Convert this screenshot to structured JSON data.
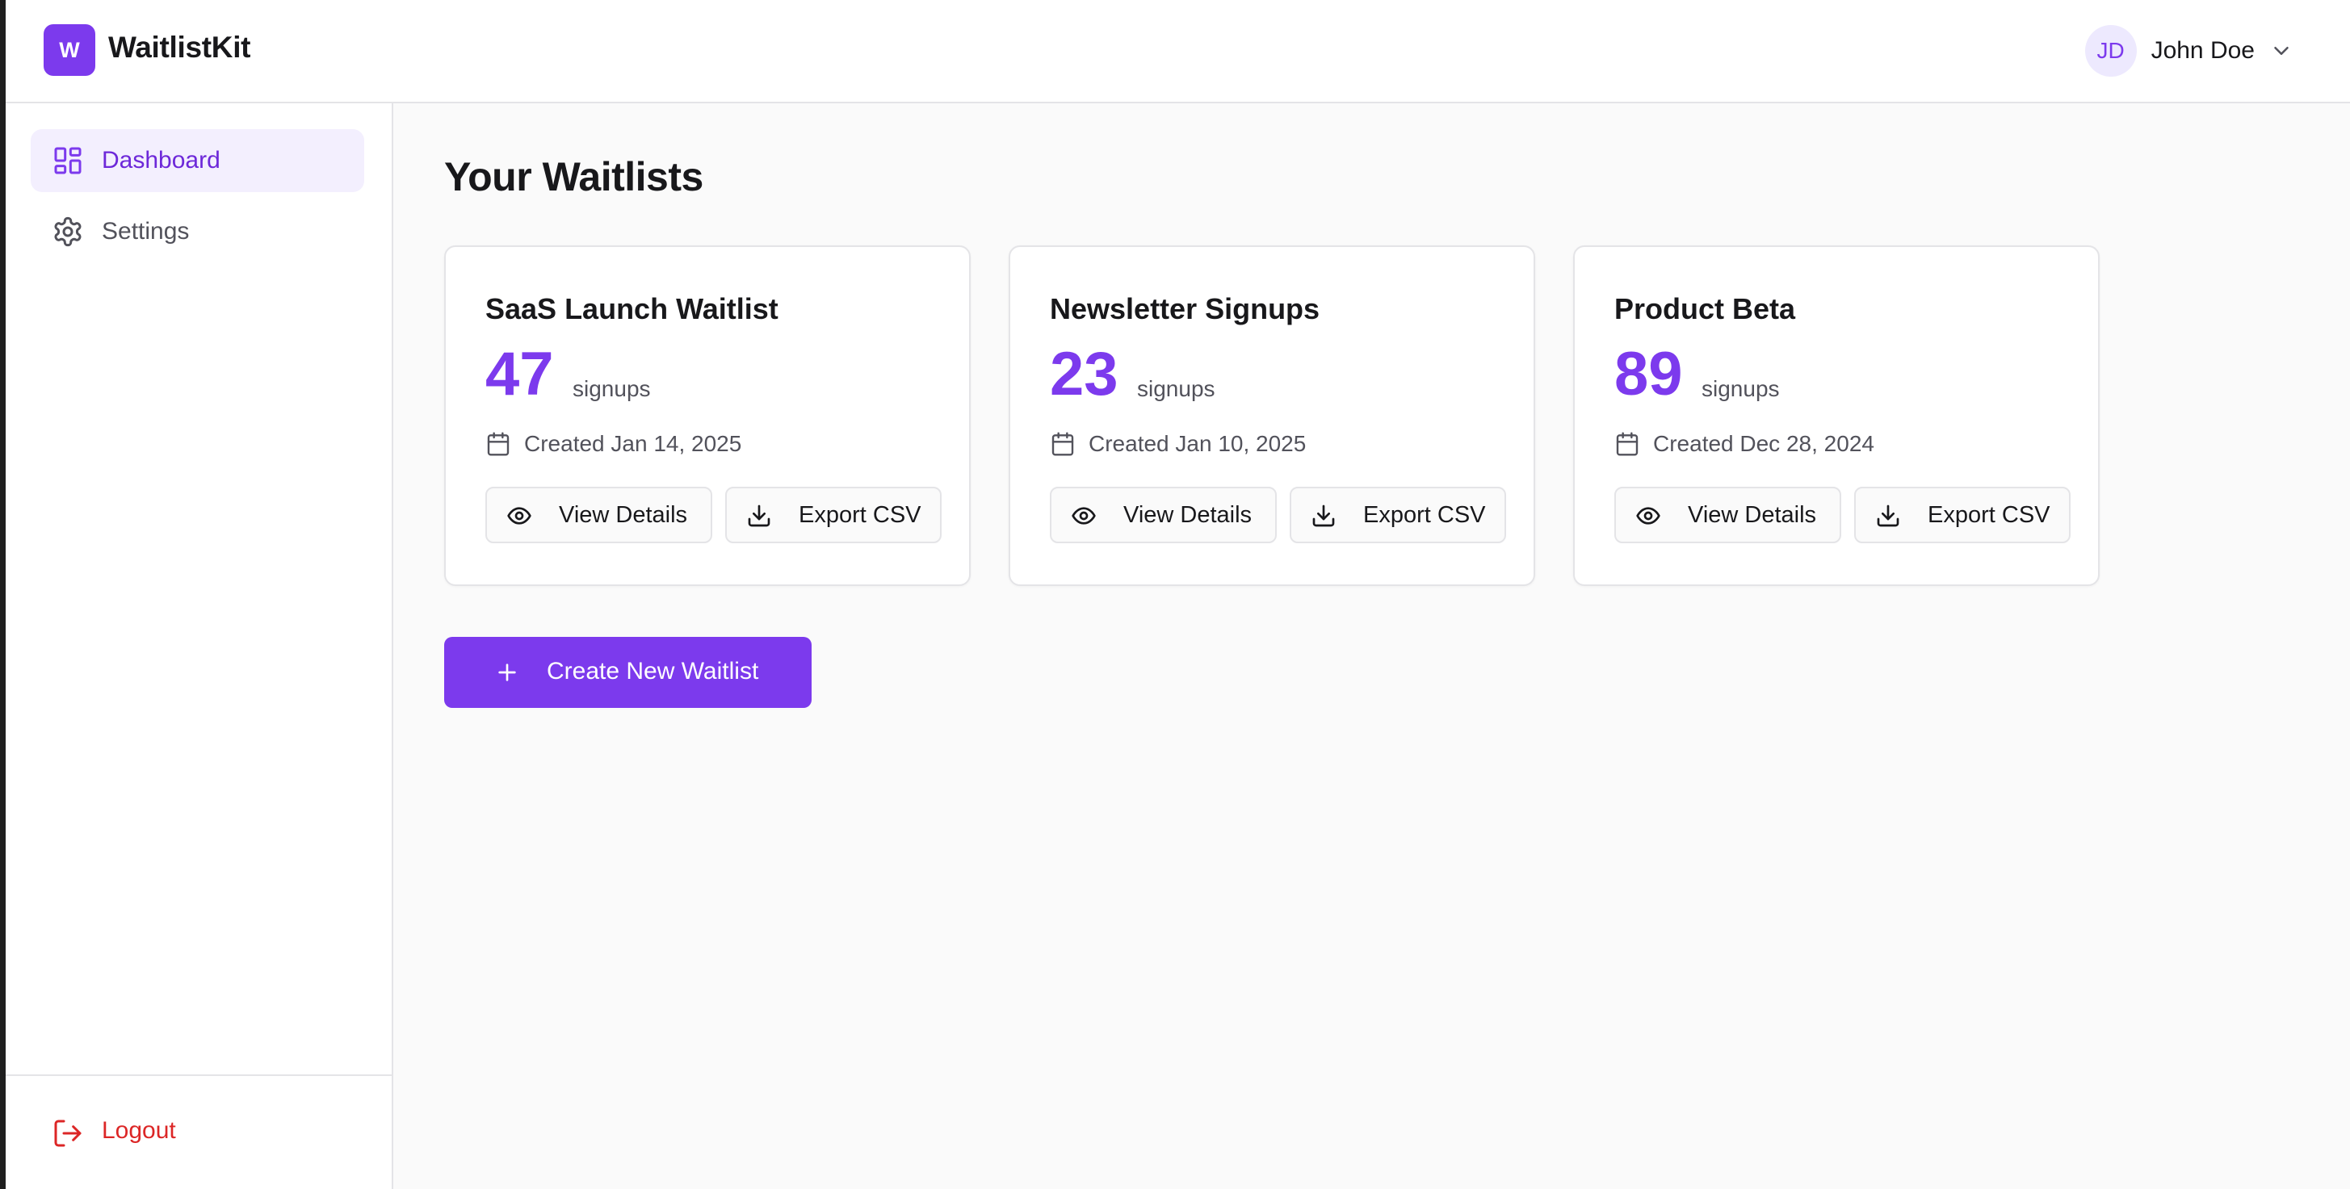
{
  "header": {
    "logo_letter": "W",
    "brand": "WaitlistKit",
    "user": {
      "initials": "JD",
      "name": "John Doe"
    }
  },
  "sidebar": {
    "items": [
      {
        "label": "Dashboard",
        "icon": "dashboard-icon",
        "active": true
      },
      {
        "label": "Settings",
        "icon": "gear-icon",
        "active": false
      }
    ],
    "logout_label": "Logout"
  },
  "main": {
    "title": "Your Waitlists",
    "cards": [
      {
        "title": "SaaS Launch Waitlist",
        "count": "47",
        "unit": "signups",
        "created": "Created Jan 14, 2025",
        "view_label": "View Details",
        "export_label": "Export CSV"
      },
      {
        "title": "Newsletter Signups",
        "count": "23",
        "unit": "signups",
        "created": "Created Jan 10, 2025",
        "view_label": "View Details",
        "export_label": "Export CSV"
      },
      {
        "title": "Product Beta",
        "count": "89",
        "unit": "signups",
        "created": "Created Dec 28, 2024",
        "view_label": "View Details",
        "export_label": "Export CSV"
      }
    ],
    "create_label": "Create New Waitlist"
  },
  "colors": {
    "accent": "#7c3aed",
    "active_bg": "#f3effe",
    "danger": "#dc2626"
  }
}
